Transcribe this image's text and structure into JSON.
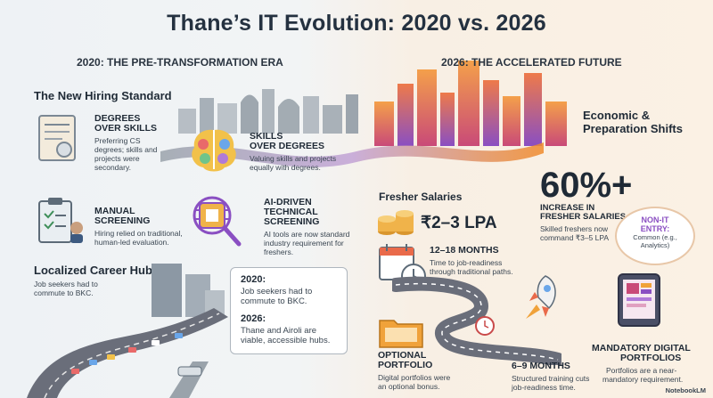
{
  "title": "Thane’s IT Evolution: 2020 vs. 2026",
  "left": {
    "era_label": "2020: THE PRE-TRANSFORMATION ERA",
    "hiring_heading": "The New Hiring Standard",
    "degrees": {
      "title1": "DEGREES",
      "title2": "OVER SKILLS",
      "desc1": "Preferring CS",
      "desc2": "degrees; skills and",
      "desc3": "projects were",
      "desc4": "secondary."
    },
    "skills": {
      "title1": "SKILLS",
      "title2": "OVER DEGREES",
      "desc1": "Valuing skills and projects",
      "desc2": "equally with degrees."
    },
    "manual": {
      "title1": "MANUAL",
      "title2": "SCREENING",
      "desc1": "Hiring relied on traditional,",
      "desc2": "human-led evaluation."
    },
    "ai": {
      "title1": "AI-DRIVEN",
      "title2": "TECHNICAL",
      "title3": "SCREENING",
      "desc1": "AI tools are now standard",
      "desc2": "industry requirement for",
      "desc3": "freshers."
    },
    "hubs_heading": "Localized Career Hubs",
    "hubs_desc1": "Job seekers had to",
    "hubs_desc2": "commute to BKC.",
    "note": {
      "h2020": "2020:",
      "p2020a": "Job seekers had to",
      "p2020b": "commute to BKC.",
      "h2026": "2026:",
      "p2026a": "Thane and Airoli are",
      "p2026b": "viable, accessible hubs."
    }
  },
  "right": {
    "era_label": "2026: THE ACCELERATED FUTURE",
    "economic1": "Economic &",
    "economic2": "Preparation Shifts",
    "salaries_heading": "Fresher Salaries",
    "salary_value": "₹2–3 LPA",
    "big_stat": "60%+",
    "stat_t1": "INCREASE IN",
    "stat_t2": "FRESHER SALARIES",
    "stat_d1": "Skilled freshers now",
    "stat_d2": "command ₹3–5 LPA",
    "nonit": {
      "l1": "NON-IT",
      "l2": "ENTRY:",
      "l3": "Common (e.g.,",
      "l4": "Analytics)"
    },
    "months_long": {
      "title": "12–18 MONTHS",
      "desc1": "Time to job-readiness",
      "desc2": "through traditional paths."
    },
    "months_short": {
      "title": "6–9 MONTHS",
      "desc1": "Structured training cuts",
      "desc2": "job-readiness time."
    },
    "optional": {
      "title1": "OPTIONAL",
      "title2": "PORTFOLIO",
      "desc1": "Digital portfolios were",
      "desc2": "an optional bonus."
    },
    "mandatory": {
      "title1": "MANDATORY DIGITAL",
      "title2": "PORTFOLIOS",
      "desc1": "Portfolios are a near-",
      "desc2": "mandatory requirement."
    }
  },
  "branding": "NotebookLM",
  "colors": {
    "accent_orange": "#f08a2a",
    "accent_purple": "#8a4fc2",
    "road": "#6a6e7a",
    "skyline_left": "#9aa3ab",
    "skyline_right": "#e86a4a"
  }
}
